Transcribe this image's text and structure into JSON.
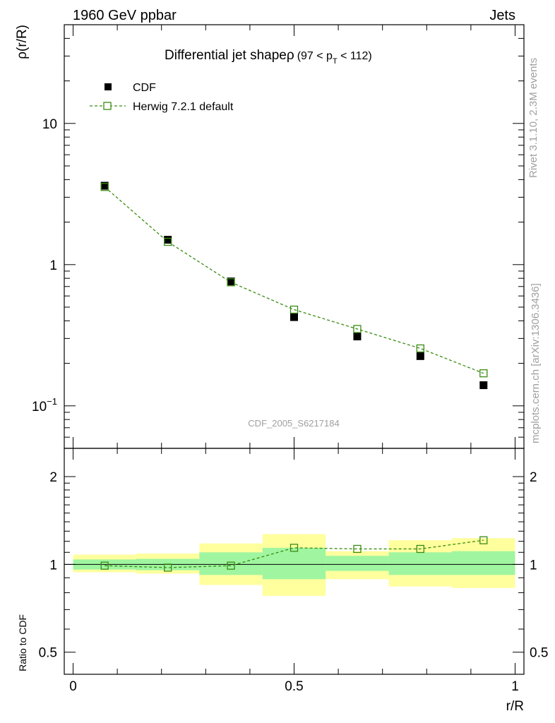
{
  "header": {
    "left": "1960 GeV ppbar",
    "right": "Jets"
  },
  "side_labels": {
    "rivet": "Rivet 3.1.10,  2.3M events",
    "mcplots": "mcplots.cern.ch [arXiv:1306.3436]"
  },
  "colors": {
    "mc_line": "#3a8c12",
    "band_inner": "#a0f5a0",
    "band_outer": "#ffff9e",
    "data_marker": "#000000",
    "watermark": "#a0a0a0"
  },
  "chart_data": [
    {
      "type": "scatter",
      "title": "Differential jet shapeρ",
      "title_suffix": "(97 < p",
      "title_sub": "T",
      "title_end": " < 112)",
      "ylabel": "ρ(r/R)",
      "xlabel": "",
      "watermark": "CDF_2005_S6217184",
      "yscale": "log",
      "xlim": [
        -0.02,
        1.02
      ],
      "ylim": [
        0.05,
        50
      ],
      "ytick_labels": [
        {
          "value": 10,
          "label": "10"
        },
        {
          "value": 1,
          "label": "1"
        },
        {
          "value": 0.1,
          "label": "10",
          "exp": "−1"
        }
      ],
      "legend": {
        "position": "top-left",
        "entries": [
          "CDF",
          "Herwig 7.2.1 default"
        ]
      },
      "series": [
        {
          "name": "CDF",
          "marker": "filled-square",
          "x": [
            0.0714,
            0.2143,
            0.3571,
            0.5,
            0.6429,
            0.7857,
            0.9286
          ],
          "y": [
            3.62,
            1.5,
            0.76,
            0.425,
            0.31,
            0.225,
            0.14
          ]
        },
        {
          "name": "Herwig 7.2.1 default",
          "marker": "open-square",
          "line": "dashed",
          "x": [
            0.0714,
            0.2143,
            0.3571,
            0.5,
            0.6429,
            0.7857,
            0.9286
          ],
          "y": [
            3.55,
            1.45,
            0.75,
            0.48,
            0.35,
            0.255,
            0.17
          ]
        }
      ]
    },
    {
      "type": "scatter",
      "ylabel": "Ratio to CDF",
      "xlabel": "r/R",
      "xlim": [
        -0.02,
        1.02
      ],
      "ylim": [
        0.42,
        2.5
      ],
      "yscale": "log",
      "xtick_labels": [
        {
          "value": 0,
          "label": "0"
        },
        {
          "value": 0.5,
          "label": "0.5"
        },
        {
          "value": 1,
          "label": "1"
        }
      ],
      "ytick_labels": [
        {
          "value": 2,
          "label": "2"
        },
        {
          "value": 1,
          "label": "1"
        },
        {
          "value": 0.5,
          "label": "0.5"
        }
      ],
      "bands": [
        {
          "x0": 0.0,
          "x1": 0.1429,
          "inner": [
            0.96,
            1.04
          ],
          "outer": [
            0.94,
            1.08
          ]
        },
        {
          "x0": 0.1429,
          "x1": 0.2857,
          "inner": [
            0.955,
            1.045
          ],
          "outer": [
            0.93,
            1.09
          ]
        },
        {
          "x0": 0.2857,
          "x1": 0.4286,
          "inner": [
            0.92,
            1.1
          ],
          "outer": [
            0.85,
            1.18
          ]
        },
        {
          "x0": 0.4286,
          "x1": 0.5714,
          "inner": [
            0.89,
            1.14
          ],
          "outer": [
            0.78,
            1.27
          ]
        },
        {
          "x0": 0.5714,
          "x1": 0.7143,
          "inner": [
            0.95,
            1.07
          ],
          "outer": [
            0.89,
            1.11
          ]
        },
        {
          "x0": 0.7143,
          "x1": 0.8571,
          "inner": [
            0.92,
            1.1
          ],
          "outer": [
            0.84,
            1.21
          ]
        },
        {
          "x0": 0.8571,
          "x1": 1.0,
          "inner": [
            0.92,
            1.11
          ],
          "outer": [
            0.83,
            1.23
          ]
        }
      ],
      "series": [
        {
          "name": "Herwig 7.2.1 default",
          "marker": "open-square",
          "line": "dashed",
          "x": [
            0.0714,
            0.2143,
            0.3571,
            0.5,
            0.6429,
            0.7857,
            0.9286
          ],
          "y": [
            0.99,
            0.975,
            0.99,
            1.14,
            1.13,
            1.13,
            1.21
          ]
        }
      ]
    }
  ]
}
